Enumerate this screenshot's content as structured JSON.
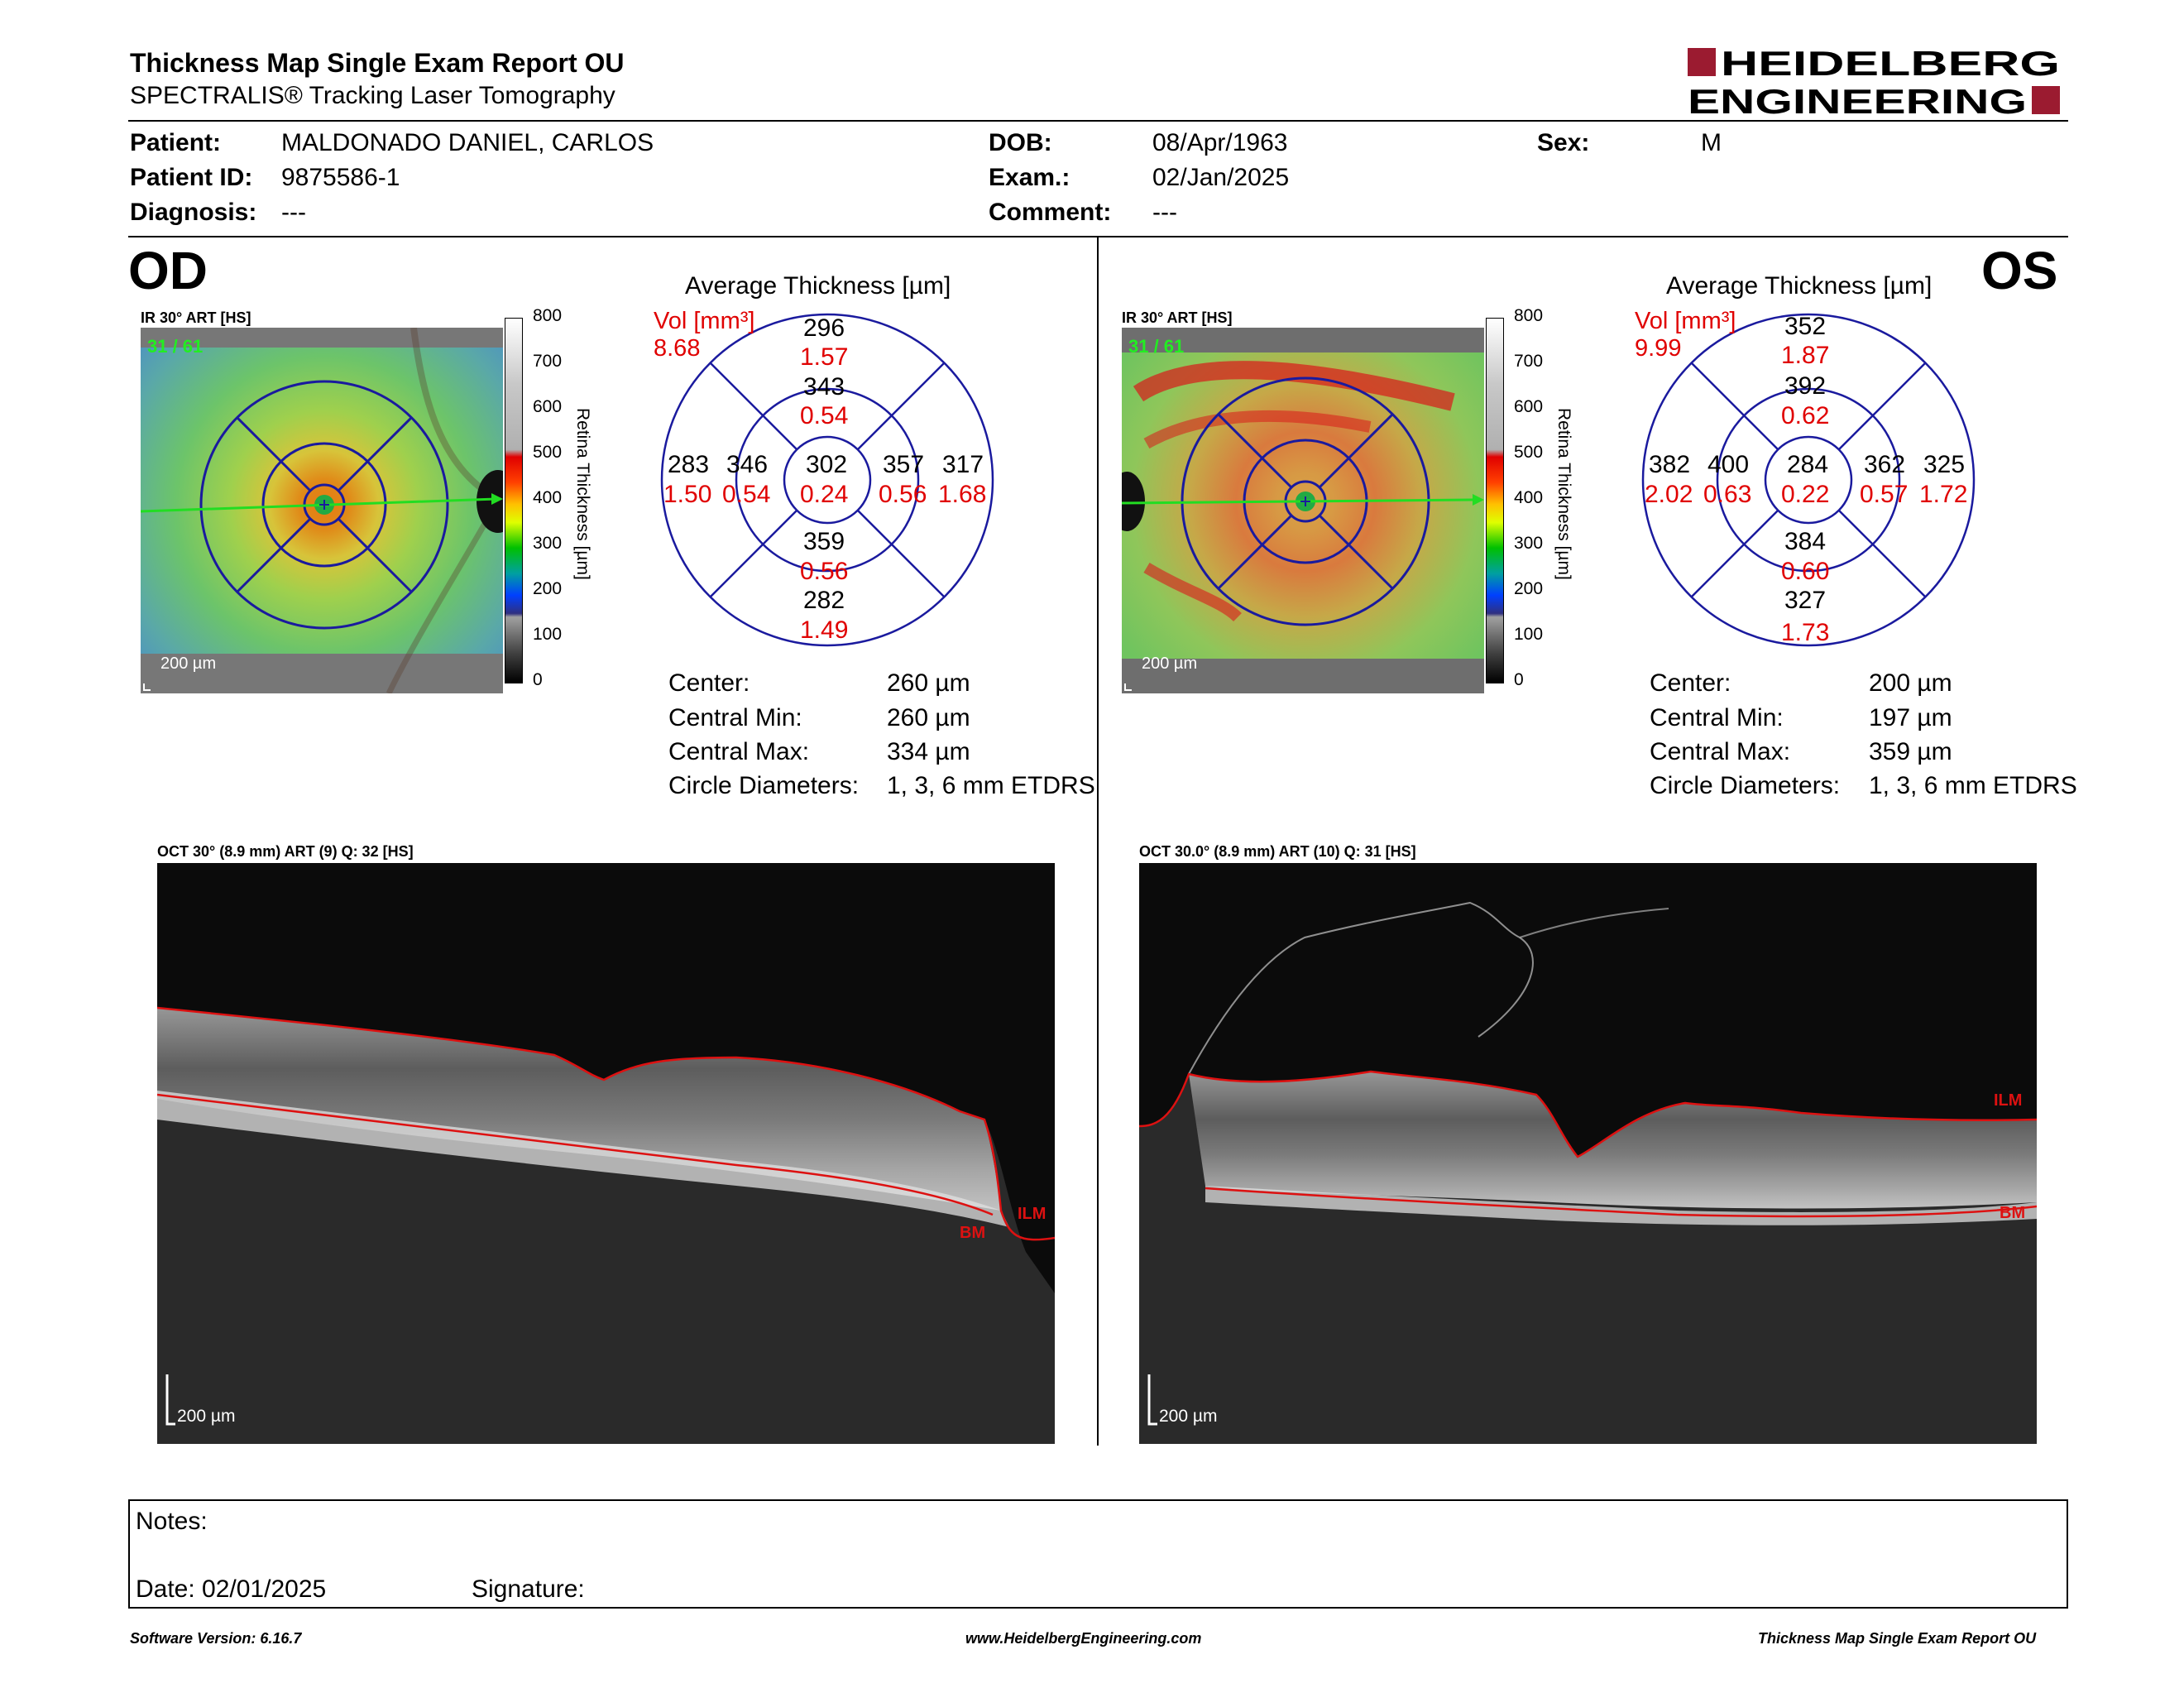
{
  "header": {
    "title": "Thickness Map Single Exam Report OU",
    "subtitle": "SPECTRALIS® Tracking Laser Tomography",
    "logo_line1": "HEIDELBERG",
    "logo_line2": "ENGINEERING"
  },
  "patient": {
    "patient_label": "Patient:",
    "patient_value": "MALDONADO DANIEL, CARLOS",
    "id_label": "Patient ID:",
    "id_value": "9875586-1",
    "diagnosis_label": "Diagnosis:",
    "diagnosis_value": "---",
    "dob_label": "DOB:",
    "dob_value": "08/Apr/1963",
    "exam_label": "Exam.:",
    "exam_value": "02/Jan/2025",
    "comment_label": "Comment:",
    "comment_value": "---",
    "sex_label": "Sex:",
    "sex_value": "M"
  },
  "od": {
    "eye": "OD",
    "fundus_label": "IR 30° ART [HS]",
    "fundus_quality": "31 / 61",
    "scale_bar": "200 µm",
    "colorbar_ticks": [
      "800",
      "700",
      "600",
      "500",
      "400",
      "300",
      "200",
      "100",
      "0"
    ],
    "colorbar_title": "Retina Thickness [µm]",
    "avg_title": "Average Thickness [µm]",
    "vol_label": "Vol [mm³]",
    "vol_value": "8.68",
    "grid": {
      "outer_top": "296",
      "outer_top_vol": "1.57",
      "inner_top": "343",
      "inner_top_vol": "0.54",
      "outer_left": "283",
      "outer_left_vol": "1.50",
      "inner_left": "346",
      "inner_left_vol": "0.54",
      "center": "302",
      "center_vol": "0.24",
      "inner_right": "357",
      "inner_right_vol": "0.56",
      "outer_right": "317",
      "outer_right_vol": "1.68",
      "inner_bottom": "359",
      "inner_bottom_vol": "0.56",
      "outer_bottom": "282",
      "outer_bottom_vol": "1.49"
    },
    "stats": {
      "center_label": "Center:",
      "center_value": "260 µm",
      "min_label": "Central Min:",
      "min_value": "260 µm",
      "max_label": "Central Max:",
      "max_value": "334 µm",
      "diam_label": "Circle Diameters:",
      "diam_value": "1, 3, 6 mm ETDRS"
    },
    "oct_label": "OCT 30° (8.9 mm) ART (9) Q: 32 [HS]",
    "oct_scale": "200 µm",
    "ilm": "ILM",
    "bm": "BM"
  },
  "os": {
    "eye": "OS",
    "fundus_label": "IR 30° ART [HS]",
    "fundus_quality": "31 / 61",
    "scale_bar": "200 µm",
    "colorbar_ticks": [
      "800",
      "700",
      "600",
      "500",
      "400",
      "300",
      "200",
      "100",
      "0"
    ],
    "colorbar_title": "Retina Thickness [µm]",
    "avg_title": "Average Thickness [µm]",
    "vol_label": "Vol [mm³]",
    "vol_value": "9.99",
    "grid": {
      "outer_top": "352",
      "outer_top_vol": "1.87",
      "inner_top": "392",
      "inner_top_vol": "0.62",
      "outer_left": "382",
      "outer_left_vol": "2.02",
      "inner_left": "400",
      "inner_left_vol": "0.63",
      "center": "284",
      "center_vol": "0.22",
      "inner_right": "362",
      "inner_right_vol": "0.57",
      "outer_right": "325",
      "outer_right_vol": "1.72",
      "inner_bottom": "384",
      "inner_bottom_vol": "0.60",
      "outer_bottom": "327",
      "outer_bottom_vol": "1.73"
    },
    "stats": {
      "center_label": "Center:",
      "center_value": "200 µm",
      "min_label": "Central Min:",
      "min_value": "197 µm",
      "max_label": "Central Max:",
      "max_value": "359 µm",
      "diam_label": "Circle Diameters:",
      "diam_value": "1, 3, 6 mm ETDRS"
    },
    "oct_label": "OCT 30.0° (8.9 mm) ART (10) Q: 31 [HS]",
    "oct_scale": "200 µm",
    "ilm": "ILM",
    "bm": "BM"
  },
  "notes": {
    "notes_label": "Notes:",
    "date_label": "Date: 02/01/2025",
    "signature_label": "Signature:"
  },
  "footer": {
    "software": "Software Version: 6.16.7",
    "website": "www.HeidelbergEngineering.com",
    "report": "Thickness Map Single Exam Report OU"
  },
  "colors": {
    "grid_blue": "#1a1a9e",
    "volume_red": "#e00000",
    "logo_red": "#9b1b30",
    "scan_line_green": "#22dd22",
    "layer_red": "#dd1111"
  }
}
